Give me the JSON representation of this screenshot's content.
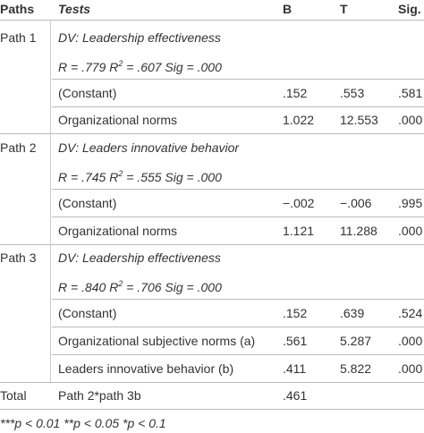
{
  "header": [
    "Paths",
    "Tests",
    "B",
    "T",
    "Sig."
  ],
  "groups": [
    {
      "path": "Path 1",
      "dv": "DV: Leadership effectiveness",
      "fit": {
        "r": "R = .779 R",
        "sup": "2",
        "rest": " = .607 Sig = .000"
      },
      "rows": [
        [
          "(Constant)",
          ".152",
          ".553",
          ".581"
        ],
        [
          "Organizational norms",
          "1.022",
          "12.553",
          ".000"
        ]
      ]
    },
    {
      "path": "Path 2",
      "dv": "DV: Leaders innovative behavior",
      "fit": {
        "r": "R = .745 R",
        "sup": "2",
        "rest": " = .555 Sig = .000"
      },
      "rows": [
        [
          "(Constant)",
          "−.002",
          "−.006",
          ".995"
        ],
        [
          "Organizational norms",
          "1.121",
          "11.288",
          ".000"
        ]
      ]
    },
    {
      "path": "Path 3",
      "dv": "DV: Leadership effectiveness",
      "fit": {
        "r": "R = .840 R",
        "sup": "2",
        "rest": " = .706 Sig = .000"
      },
      "rows": [
        [
          "(Constant)",
          ".152",
          ".639",
          ".524"
        ],
        [
          "Organizational subjective norms (a)",
          ".561",
          "5.287",
          ".000"
        ],
        [
          "Leaders innovative behavior (b)",
          ".411",
          "5.822",
          ".000"
        ]
      ]
    }
  ],
  "total": {
    "path": "Total",
    "test": "Path 2*path 3b",
    "b": ".461"
  },
  "footnote": "***p < 0.01 **p < 0.05 *p < 0.1"
}
